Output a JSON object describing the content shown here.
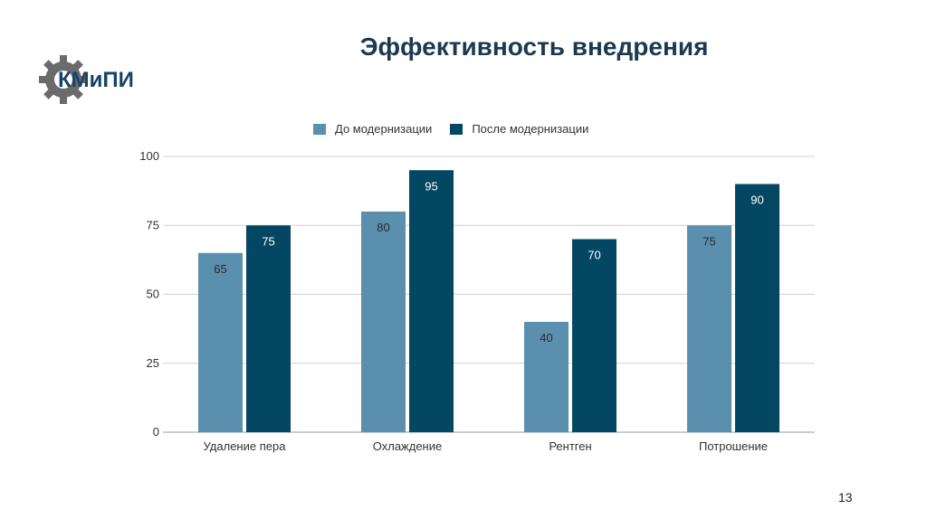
{
  "slide": {
    "title": "Эффективность внедрения",
    "logo_text": "КМиПИ",
    "page_number": "13"
  },
  "colors": {
    "before": "#5b8fae",
    "after": "#034763",
    "title": "#1b3a52",
    "grid": "#d0d0d0",
    "label_light": "#2b2b2b",
    "label_dark": "#ffffff",
    "logo_gear": "#6b6b6b",
    "logo_text": "#17436b"
  },
  "chart_data": {
    "type": "bar",
    "title": "",
    "xlabel": "",
    "ylabel": "",
    "categories": [
      "Удаление пера",
      "Охлаждение",
      "Рентген",
      "Потрошение"
    ],
    "series": [
      {
        "name": "До модернизации",
        "values": [
          65,
          80,
          40,
          75
        ]
      },
      {
        "name": "После модернизации",
        "values": [
          75,
          95,
          70,
          90
        ]
      }
    ],
    "ylim": [
      0,
      100
    ],
    "yticks": [
      0,
      25,
      50,
      75,
      100
    ],
    "legend_position": "top-center",
    "grid": true
  }
}
